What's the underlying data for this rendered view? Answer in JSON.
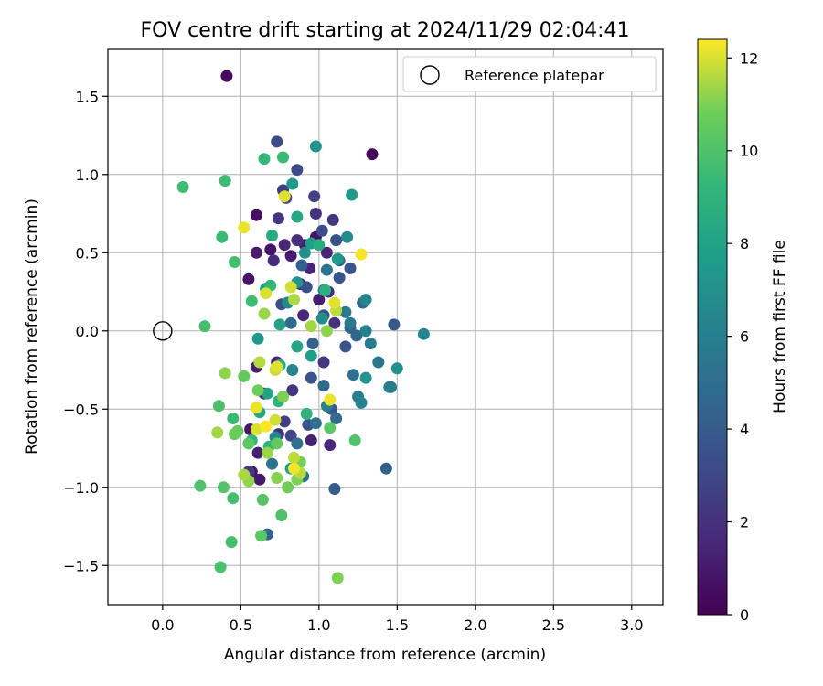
{
  "chart_data": {
    "type": "scatter",
    "title": "FOV centre drift starting at 2024/11/29 02:04:41",
    "xlabel": "Angular distance from reference (arcmin)",
    "ylabel": "Rotation from reference (arcmin)",
    "xlim": [
      -0.35,
      3.2
    ],
    "ylim": [
      -1.75,
      1.8
    ],
    "xticks": [
      0.0,
      0.5,
      1.0,
      1.5,
      2.0,
      2.5,
      3.0
    ],
    "xtick_labels": [
      "0.0",
      "0.5",
      "1.0",
      "1.5",
      "2.0",
      "2.5",
      "3.0"
    ],
    "yticks": [
      -1.5,
      -1.0,
      -0.5,
      0.0,
      0.5,
      1.0,
      1.5
    ],
    "ytick_labels": [
      "−1.5",
      "−1.0",
      "−0.5",
      "0.0",
      "0.5",
      "1.0",
      "1.5"
    ],
    "grid": true,
    "legend": {
      "placement": "top-right",
      "entries": [
        {
          "label": "Reference platepar",
          "marker": "open-circle"
        }
      ]
    },
    "reference_point": {
      "x": 0.0,
      "y": 0.0
    },
    "colormap": "viridis",
    "colorbar": {
      "label": "Hours from first FF file",
      "range": [
        0,
        12.4
      ],
      "ticks": [
        0,
        2,
        4,
        6,
        8,
        10,
        12
      ],
      "tick_labels": [
        "0",
        "2",
        "4",
        "6",
        "8",
        "10",
        "12"
      ]
    },
    "columns": [
      "x",
      "y",
      "hours"
    ],
    "points": [
      [
        0.41,
        1.63,
        0.3
      ],
      [
        1.34,
        1.13,
        0.3
      ],
      [
        0.6,
        0.74,
        0.5
      ],
      [
        0.69,
        0.52,
        0.8
      ],
      [
        0.6,
        0.5,
        1.0
      ],
      [
        0.55,
        0.33,
        0.8
      ],
      [
        0.91,
        0.55,
        1.2
      ],
      [
        0.98,
        0.6,
        0.7
      ],
      [
        0.82,
        0.48,
        1.0
      ],
      [
        0.94,
        0.4,
        1.4
      ],
      [
        1.05,
        0.5,
        1.5
      ],
      [
        0.88,
        0.3,
        1.6
      ],
      [
        1.06,
        0.25,
        1.8
      ],
      [
        0.71,
        0.45,
        1.7
      ],
      [
        0.78,
        0.55,
        1.5
      ],
      [
        0.86,
        0.58,
        1.9
      ],
      [
        0.98,
        0.75,
        2.1
      ],
      [
        1.09,
        0.71,
        2.3
      ],
      [
        0.77,
        0.9,
        2.5
      ],
      [
        0.97,
        0.86,
        2.7
      ],
      [
        0.74,
        0.72,
        2.2
      ],
      [
        1.0,
        0.2,
        1.1
      ],
      [
        0.9,
        0.1,
        1.5
      ],
      [
        1.1,
        0.05,
        2.0
      ],
      [
        0.6,
        -0.23,
        1.2
      ],
      [
        0.65,
        -0.4,
        1.4
      ],
      [
        0.73,
        -0.2,
        1.6
      ],
      [
        0.56,
        -0.63,
        0.9
      ],
      [
        0.61,
        -0.78,
        1.2
      ],
      [
        0.57,
        -0.9,
        0.8
      ],
      [
        0.62,
        -0.95,
        0.9
      ],
      [
        0.95,
        -0.7,
        1.3
      ],
      [
        1.07,
        -0.73,
        1.6
      ],
      [
        0.83,
        -0.38,
        2.3
      ],
      [
        1.03,
        -0.2,
        2.2
      ],
      [
        0.74,
        -0.66,
        2.0
      ],
      [
        0.55,
        -0.9,
        2.4
      ],
      [
        0.78,
        -0.58,
        2.6
      ],
      [
        0.82,
        -0.67,
        2.9
      ],
      [
        0.73,
        1.21,
        3.2
      ],
      [
        0.86,
        1.03,
        3.2
      ],
      [
        0.79,
        0.85,
        3.1
      ],
      [
        1.02,
        0.64,
        3.3
      ],
      [
        1.11,
        0.58,
        3.5
      ],
      [
        1.2,
        0.4,
        3.6
      ],
      [
        1.13,
        0.34,
        3.7
      ],
      [
        0.92,
        0.28,
        3.4
      ],
      [
        0.76,
        0.17,
        3.3
      ],
      [
        1.48,
        0.04,
        3.8
      ],
      [
        1.03,
        0.1,
        3.9
      ],
      [
        1.17,
        -0.1,
        3.6
      ],
      [
        0.95,
        -0.3,
        3.7
      ],
      [
        1.08,
        -0.5,
        3.8
      ],
      [
        0.93,
        -0.6,
        3.5
      ],
      [
        1.1,
        -1.01,
        4.1
      ],
      [
        1.43,
        -0.88,
        4.4
      ],
      [
        0.67,
        -1.3,
        4.3
      ],
      [
        1.2,
        0.02,
        4.3
      ],
      [
        1.24,
        -0.03,
        4.5
      ],
      [
        0.96,
        -0.08,
        4.4
      ],
      [
        1.28,
        0.18,
        4.6
      ],
      [
        1.13,
        0.45,
        4.5
      ],
      [
        0.89,
        0.42,
        4.2
      ],
      [
        0.82,
        0.05,
        4.7
      ],
      [
        1.03,
        -0.35,
        4.8
      ],
      [
        1.11,
        -0.56,
        4.9
      ],
      [
        0.98,
        -0.59,
        5.0
      ],
      [
        0.86,
        -0.72,
        5.1
      ],
      [
        0.7,
        -0.85,
        5.3
      ],
      [
        0.9,
        -0.93,
        5.5
      ],
      [
        1.22,
        -0.28,
        5.2
      ],
      [
        1.38,
        -0.2,
        5.4
      ],
      [
        1.46,
        -0.36,
        5.7
      ],
      [
        1.05,
        0.39,
        5.5
      ],
      [
        1.2,
        0.05,
        5.6
      ],
      [
        1.33,
        -0.08,
        5.8
      ],
      [
        1.25,
        -0.42,
        6.0
      ],
      [
        1.05,
        -0.48,
        6.1
      ],
      [
        1.03,
        0.26,
        5.9
      ],
      [
        1.17,
        0.12,
        5.7
      ],
      [
        1.3,
        0.0,
        6.1
      ],
      [
        1.67,
        -0.02,
        6.4
      ],
      [
        1.45,
        -0.36,
        6.0
      ],
      [
        1.27,
        -0.46,
        6.2
      ],
      [
        0.83,
        -0.25,
        6.3
      ],
      [
        0.72,
        -0.68,
        6.5
      ],
      [
        0.8,
        0.18,
        6.6
      ],
      [
        1.02,
        0.08,
        6.8
      ],
      [
        0.91,
        0.5,
        6.9
      ],
      [
        1.18,
        0.6,
        6.7
      ],
      [
        1.3,
        0.2,
        6.5
      ],
      [
        1.5,
        -0.24,
        7.0
      ],
      [
        1.3,
        -0.3,
        7.2
      ],
      [
        0.98,
        1.18,
        7.2
      ],
      [
        1.21,
        0.87,
        7.4
      ],
      [
        0.83,
        0.94,
        7.6
      ],
      [
        0.95,
        0.56,
        7.8
      ],
      [
        1.12,
        0.46,
        7.5
      ],
      [
        0.86,
        0.31,
        7.3
      ],
      [
        0.66,
        0.27,
        7.8
      ],
      [
        0.61,
        -0.05,
        7.5
      ],
      [
        0.95,
        -0.16,
        7.7
      ],
      [
        0.67,
        -0.4,
        8.0
      ],
      [
        0.82,
        -0.88,
        7.9
      ],
      [
        0.86,
        -0.1,
        8.2
      ],
      [
        0.75,
        0.04,
        8.0
      ],
      [
        0.7,
        0.61,
        8.5
      ],
      [
        0.86,
        0.73,
        8.3
      ],
      [
        1.0,
        0.55,
        8.6
      ],
      [
        1.04,
        0.26,
        8.8
      ],
      [
        0.62,
        -0.52,
        8.4
      ],
      [
        0.75,
        -0.22,
        8.7
      ],
      [
        0.68,
        -0.74,
        8.9
      ],
      [
        0.92,
        -0.53,
        9.0
      ],
      [
        0.57,
        -0.7,
        9.1
      ],
      [
        0.74,
        -0.45,
        8.9
      ],
      [
        0.77,
        1.11,
        9.5
      ],
      [
        0.65,
        1.1,
        9.3
      ],
      [
        0.13,
        0.92,
        9.6
      ],
      [
        0.4,
        0.96,
        9.6
      ],
      [
        0.38,
        0.6,
        9.4
      ],
      [
        0.46,
        0.44,
        9.7
      ],
      [
        0.57,
        0.19,
        9.6
      ],
      [
        0.69,
        0.29,
        9.2
      ],
      [
        0.27,
        0.03,
        9.8
      ],
      [
        0.36,
        -0.48,
        9.9
      ],
      [
        0.45,
        -0.56,
        9.5
      ],
      [
        0.24,
        -0.99,
        10.0
      ],
      [
        0.39,
        -1.0,
        10.1
      ],
      [
        0.45,
        -1.07,
        9.8
      ],
      [
        0.44,
        -1.35,
        9.7
      ],
      [
        0.37,
        -1.51,
        9.9
      ],
      [
        0.63,
        -1.31,
        10.3
      ],
      [
        0.76,
        -1.18,
        10.0
      ],
      [
        0.64,
        -1.08,
        10.2
      ],
      [
        1.07,
        -0.62,
        10.3
      ],
      [
        1.23,
        -0.7,
        10.1
      ],
      [
        0.55,
        -0.72,
        10.4
      ],
      [
        0.48,
        -0.64,
        10.6
      ],
      [
        0.46,
        -0.66,
        10.7
      ],
      [
        0.52,
        -0.29,
        10.5
      ],
      [
        0.61,
        -0.38,
        10.8
      ],
      [
        0.77,
        -0.42,
        11.0
      ],
      [
        0.73,
        -0.72,
        10.6
      ],
      [
        0.88,
        -0.84,
        10.9
      ],
      [
        0.8,
        -1.0,
        10.8
      ],
      [
        0.73,
        -0.94,
        11.1
      ],
      [
        0.86,
        -0.95,
        11.0
      ],
      [
        0.55,
        -0.96,
        11.2
      ],
      [
        1.12,
        -1.58,
        11.0
      ],
      [
        0.67,
        -0.78,
        11.3
      ],
      [
        0.35,
        -0.65,
        11.4
      ],
      [
        0.4,
        -0.27,
        11.2
      ],
      [
        0.52,
        -0.92,
        11.5
      ],
      [
        0.62,
        -0.2,
        11.6
      ],
      [
        0.72,
        -0.25,
        11.8
      ],
      [
        0.65,
        0.11,
        11.3
      ],
      [
        0.84,
        0.2,
        11.5
      ],
      [
        0.95,
        0.03,
        11.4
      ],
      [
        1.05,
        0.0,
        11.2
      ],
      [
        1.11,
        0.13,
        11.7
      ],
      [
        0.82,
        0.28,
        11.9
      ],
      [
        0.84,
        -0.81,
        11.7
      ],
      [
        0.88,
        -0.91,
        11.6
      ],
      [
        0.72,
        -0.57,
        11.9
      ],
      [
        0.78,
        0.86,
        12.1
      ],
      [
        0.52,
        0.66,
        12.2
      ],
      [
        0.66,
        0.24,
        12.0
      ],
      [
        1.27,
        0.49,
        12.3
      ],
      [
        1.1,
        0.18,
        12.1
      ],
      [
        0.6,
        -0.63,
        12.0
      ],
      [
        1.07,
        -0.44,
        12.2
      ],
      [
        0.84,
        -0.88,
        12.3
      ],
      [
        0.66,
        -0.61,
        12.4
      ],
      [
        0.73,
        -0.23,
        12.1
      ],
      [
        0.6,
        -0.49,
        12.2
      ]
    ]
  }
}
